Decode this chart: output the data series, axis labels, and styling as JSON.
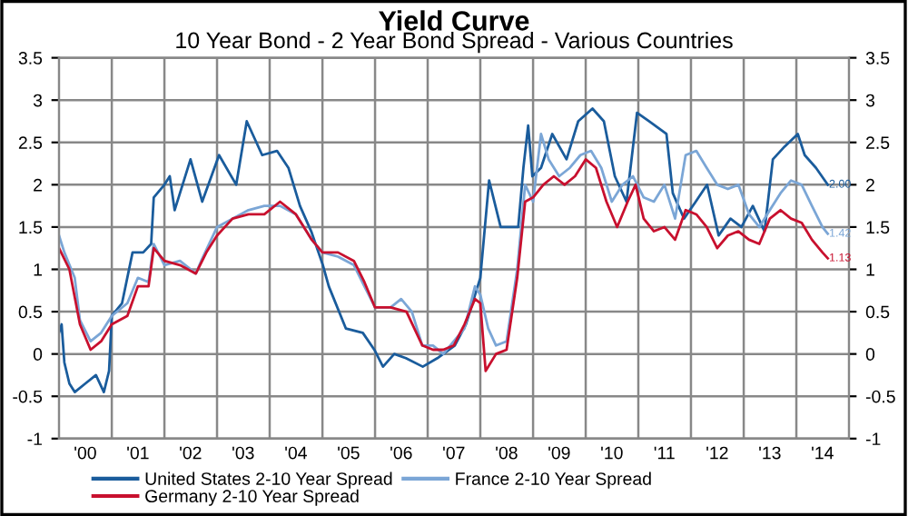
{
  "chart_data": {
    "type": "line",
    "title": "Yield Curve",
    "subtitle": "10 Year Bond - 2 Year Bond Spread - Various Countries",
    "xlim": [
      "2000-01-01",
      "2015-01-01"
    ],
    "xticks": [
      {
        "value": "2000-07-01",
        "label": "'00"
      },
      {
        "value": "2001-01-01",
        "label": null
      },
      {
        "value": "2001-07-01",
        "label": "'01"
      },
      {
        "value": "2002-01-01",
        "label": null
      },
      {
        "value": "2002-07-01",
        "label": "'02"
      },
      {
        "value": "2003-01-01",
        "label": null
      },
      {
        "value": "2003-07-01",
        "label": "'03"
      },
      {
        "value": "2004-01-01",
        "label": null
      },
      {
        "value": "2004-07-01",
        "label": "'04"
      },
      {
        "value": "2005-01-01",
        "label": null
      },
      {
        "value": "2005-07-01",
        "label": "'05"
      },
      {
        "value": "2006-01-01",
        "label": null
      },
      {
        "value": "2006-07-01",
        "label": "'06"
      },
      {
        "value": "2007-01-01",
        "label": null
      },
      {
        "value": "2007-07-01",
        "label": "'07"
      },
      {
        "value": "2008-01-01",
        "label": null
      },
      {
        "value": "2008-07-01",
        "label": "'08"
      },
      {
        "value": "2009-01-01",
        "label": null
      },
      {
        "value": "2009-07-01",
        "label": "'09"
      },
      {
        "value": "2010-01-01",
        "label": null
      },
      {
        "value": "2010-07-01",
        "label": "'10"
      },
      {
        "value": "2011-01-01",
        "label": null
      },
      {
        "value": "2011-07-01",
        "label": "'11"
      },
      {
        "value": "2012-01-01",
        "label": null
      },
      {
        "value": "2012-07-01",
        "label": "'12"
      },
      {
        "value": "2013-01-01",
        "label": null
      },
      {
        "value": "2013-07-01",
        "label": "'13"
      },
      {
        "value": "2014-01-01",
        "label": null
      },
      {
        "value": "2014-07-01",
        "label": "'14"
      }
    ],
    "ylim": [
      -1,
      3.5
    ],
    "yticks": [
      -1,
      -0.5,
      0,
      0.5,
      1,
      1.5,
      2,
      2.5,
      3,
      3.5
    ],
    "y2lim": [
      -1,
      3.5
    ],
    "y2ticks": [
      -1,
      -0.5,
      0,
      0.5,
      1,
      1.5,
      2,
      2.5,
      3,
      3.5
    ],
    "grid": true,
    "legend": "bottom",
    "line_style": "solid",
    "marker": "none",
    "series": [
      {
        "name": "United States 2-10 Year Spread",
        "color": "#1a5c9c",
        "x": [
          "2000-01-01",
          "2000-01-19",
          "2000-02-07",
          "2000-03-13",
          "2000-04-19",
          "2000-07-01",
          "2000-09-13",
          "2000-11-07",
          "2000-12-13",
          "2001-01-01",
          "2001-03-13",
          "2001-05-25",
          "2001-08-07",
          "2001-10-01",
          "2001-10-19",
          "2002-01-01",
          "2002-02-07",
          "2002-03-13",
          "2002-07-01",
          "2002-09-20",
          "2003-01-15",
          "2003-05-14",
          "2003-07-26",
          "2003-11-10",
          "2004-02-21",
          "2004-05-10",
          "2004-07-29",
          "2004-10-15",
          "2005-01-04",
          "2005-02-14",
          "2005-06-13",
          "2005-10-08",
          "2005-12-27",
          "2006-02-25",
          "2006-05-14",
          "2006-08-03",
          "2006-11-28",
          "2007-03-09",
          "2007-07-08",
          "2007-09-23",
          "2008-01-01",
          "2008-03-02",
          "2008-05-21",
          "2008-08-07",
          "2008-09-20",
          "2008-10-26",
          "2008-11-28",
          "2008-12-27",
          "2009-02-25",
          "2009-05-14",
          "2009-08-21",
          "2009-11-10",
          "2010-02-17",
          "2010-05-07",
          "2010-07-22",
          "2010-10-11",
          "2010-12-23",
          "2011-03-16",
          "2011-07-15",
          "2011-08-28",
          "2011-11-14",
          "2012-02-03",
          "2012-04-22",
          "2012-07-11",
          "2012-10-01",
          "2012-12-16",
          "2013-03-05",
          "2013-05-25",
          "2013-07-22",
          "2013-10-11",
          "2014-01-11",
          "2014-02-28",
          "2014-05-17",
          "2014-08-07"
        ],
        "values": [
          0.25,
          0.35,
          -0.1,
          -0.35,
          -0.45,
          -0.35,
          -0.25,
          -0.45,
          -0.2,
          0.45,
          0.6,
          1.2,
          1.2,
          1.3,
          1.85,
          2.0,
          2.1,
          1.7,
          2.3,
          1.8,
          2.35,
          2.0,
          2.75,
          2.35,
          2.4,
          2.2,
          1.75,
          1.45,
          1.05,
          0.8,
          0.3,
          0.25,
          0.05,
          -0.15,
          0.0,
          -0.05,
          -0.15,
          -0.05,
          0.1,
          0.35,
          0.9,
          2.05,
          1.5,
          1.5,
          1.5,
          2.2,
          2.7,
          2.1,
          2.2,
          2.6,
          2.3,
          2.75,
          2.9,
          2.75,
          2.1,
          1.8,
          2.85,
          2.75,
          2.6,
          1.9,
          1.6,
          1.8,
          2.0,
          1.4,
          1.6,
          1.5,
          1.75,
          1.45,
          2.3,
          2.45,
          2.6,
          2.35,
          2.2,
          2.0
        ]
      },
      {
        "name": "France 2-10 Year Spread",
        "color": "#7ba6d6",
        "x": [
          "2000-01-01",
          "2000-02-07",
          "2000-04-19",
          "2000-05-25",
          "2000-08-07",
          "2000-10-19",
          "2001-01-01",
          "2001-04-19",
          "2001-07-01",
          "2001-09-13",
          "2001-10-19",
          "2002-01-01",
          "2002-04-19",
          "2002-08-07",
          "2002-09-13",
          "2003-01-01",
          "2003-04-19",
          "2003-08-07",
          "2003-11-25",
          "2004-03-13",
          "2004-07-01",
          "2004-10-19",
          "2005-01-01",
          "2005-04-19",
          "2005-08-07",
          "2005-10-19",
          "2006-01-01",
          "2006-04-19",
          "2006-07-01",
          "2006-09-13",
          "2006-11-25",
          "2007-02-07",
          "2007-04-19",
          "2007-07-01",
          "2007-09-13",
          "2007-11-25",
          "2008-01-01",
          "2008-02-25",
          "2008-04-19",
          "2008-07-01",
          "2008-09-13",
          "2008-11-07",
          "2009-01-01",
          "2009-02-25",
          "2009-04-19",
          "2009-07-01",
          "2009-09-13",
          "2009-11-25",
          "2010-02-07",
          "2010-04-19",
          "2010-07-01",
          "2010-09-13",
          "2010-11-25",
          "2011-02-07",
          "2011-04-19",
          "2011-07-01",
          "2011-09-13",
          "2011-11-25",
          "2012-02-07",
          "2012-04-19",
          "2012-07-01",
          "2012-09-13",
          "2012-11-25",
          "2013-02-07",
          "2013-04-19",
          "2013-07-01",
          "2013-09-13",
          "2013-11-25",
          "2014-02-07",
          "2014-04-19",
          "2014-07-01",
          "2014-08-07"
        ],
        "values": [
          1.4,
          1.2,
          0.9,
          0.4,
          0.15,
          0.25,
          0.45,
          0.6,
          0.9,
          0.85,
          1.3,
          1.05,
          1.1,
          0.95,
          1.1,
          1.5,
          1.6,
          1.7,
          1.75,
          1.75,
          1.65,
          1.35,
          1.2,
          1.15,
          1.05,
          0.8,
          0.55,
          0.55,
          0.65,
          0.5,
          0.1,
          0.1,
          0.0,
          0.15,
          0.3,
          0.8,
          0.7,
          0.3,
          0.1,
          0.15,
          1.0,
          2.0,
          1.8,
          2.6,
          2.3,
          2.1,
          2.2,
          2.35,
          2.4,
          2.2,
          1.8,
          2.0,
          2.1,
          1.85,
          1.8,
          2.0,
          1.6,
          2.35,
          2.4,
          2.2,
          2.0,
          1.95,
          2.0,
          1.65,
          1.5,
          1.7,
          1.9,
          2.05,
          2.0,
          1.75,
          1.5,
          1.42
        ]
      },
      {
        "name": "Germany 2-10 Year Spread",
        "color": "#c8102e",
        "x": [
          "2000-01-01",
          "2000-03-13",
          "2000-05-25",
          "2000-08-07",
          "2000-10-19",
          "2001-01-01",
          "2001-04-19",
          "2001-07-01",
          "2001-09-13",
          "2001-10-19",
          "2002-01-01",
          "2002-04-19",
          "2002-08-07",
          "2002-10-19",
          "2003-01-01",
          "2003-04-19",
          "2003-08-07",
          "2003-11-25",
          "2004-03-13",
          "2004-07-01",
          "2004-10-19",
          "2005-01-01",
          "2005-04-19",
          "2005-08-07",
          "2005-10-19",
          "2006-01-01",
          "2006-04-19",
          "2006-08-07",
          "2006-11-25",
          "2007-02-07",
          "2007-04-19",
          "2007-07-01",
          "2007-09-13",
          "2007-11-25",
          "2008-01-01",
          "2008-02-07",
          "2008-04-19",
          "2008-07-01",
          "2008-09-13",
          "2008-11-07",
          "2009-01-01",
          "2009-03-13",
          "2009-05-25",
          "2009-08-07",
          "2009-10-19",
          "2010-01-01",
          "2010-03-13",
          "2010-05-25",
          "2010-08-07",
          "2010-10-19",
          "2010-12-13",
          "2011-02-07",
          "2011-04-19",
          "2011-07-01",
          "2011-09-13",
          "2011-11-25",
          "2012-02-07",
          "2012-04-19",
          "2012-07-01",
          "2012-09-13",
          "2012-11-25",
          "2013-02-07",
          "2013-04-19",
          "2013-07-01",
          "2013-09-13",
          "2013-11-25",
          "2014-02-07",
          "2014-04-19",
          "2014-07-01",
          "2014-08-07"
        ],
        "values": [
          1.25,
          1.0,
          0.35,
          0.05,
          0.15,
          0.35,
          0.45,
          0.8,
          0.8,
          1.25,
          1.1,
          1.05,
          0.95,
          1.2,
          1.4,
          1.6,
          1.65,
          1.65,
          1.8,
          1.65,
          1.35,
          1.2,
          1.2,
          1.1,
          0.85,
          0.55,
          0.55,
          0.5,
          0.1,
          0.05,
          0.05,
          0.1,
          0.35,
          0.65,
          0.6,
          -0.2,
          0.0,
          0.05,
          0.9,
          1.8,
          1.85,
          2.0,
          2.1,
          2.0,
          2.1,
          2.3,
          2.2,
          1.8,
          1.5,
          1.8,
          2.0,
          1.6,
          1.45,
          1.5,
          1.35,
          1.7,
          1.65,
          1.5,
          1.25,
          1.4,
          1.45,
          1.35,
          1.3,
          1.6,
          1.7,
          1.6,
          1.55,
          1.35,
          1.2,
          1.13
        ]
      }
    ],
    "annotations": [
      {
        "text": "2.00",
        "x": "2014-08-07",
        "y": 2.0
      },
      {
        "text": "1.42",
        "x": "2014-08-07",
        "y": 1.42
      },
      {
        "text": "1.13",
        "x": "2014-08-07",
        "y": 1.13
      }
    ]
  }
}
